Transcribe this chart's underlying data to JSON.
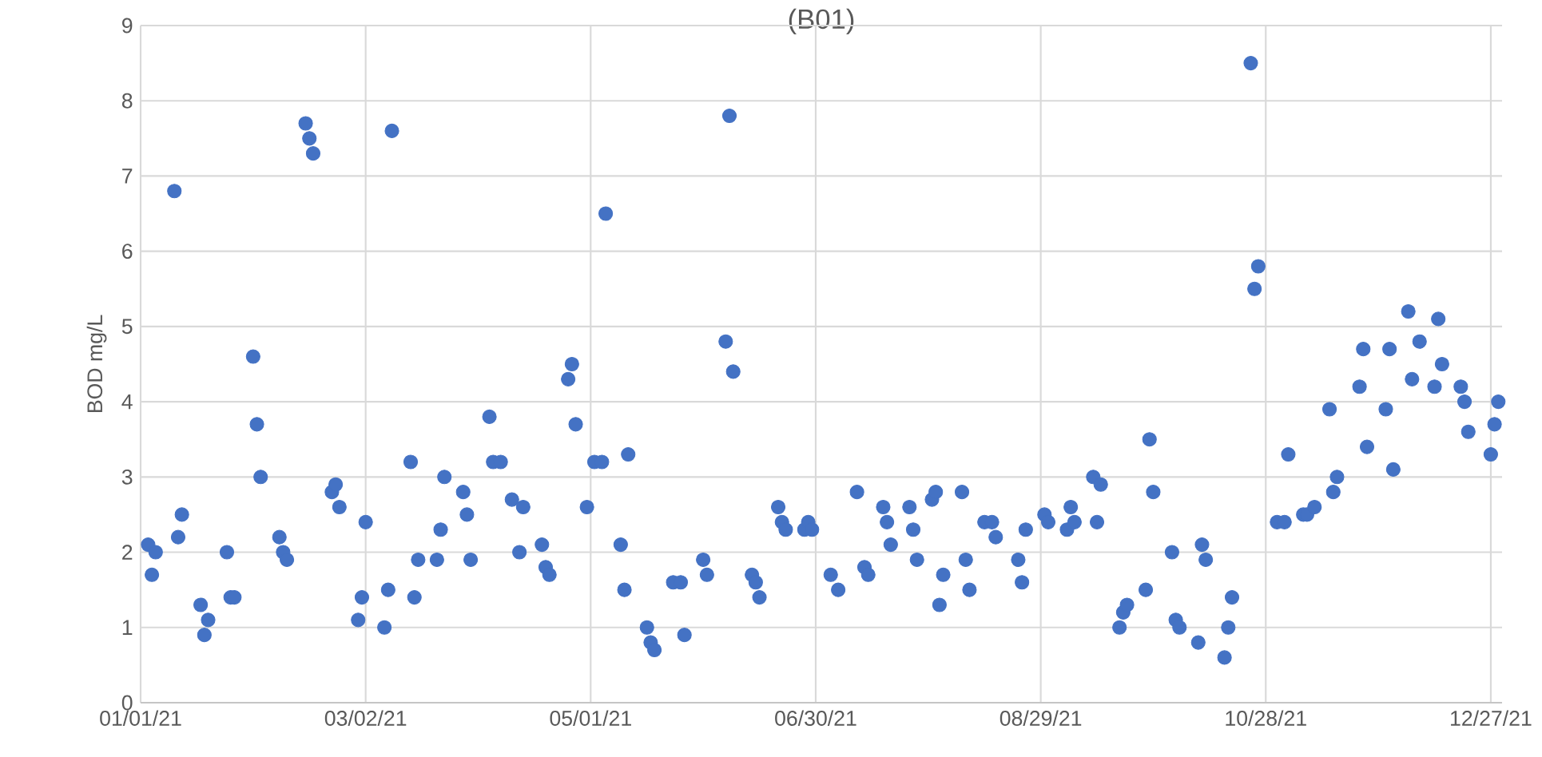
{
  "chart_data": {
    "type": "scatter",
    "title": "(B01)",
    "ylabel": "BOD mg/L",
    "marker": "circle",
    "grid": true,
    "xlim": [
      "2021-01-01",
      "2021-12-30"
    ],
    "ylim": [
      0,
      9
    ],
    "yticks": [
      0,
      1,
      2,
      3,
      4,
      5,
      6,
      7,
      8,
      9
    ],
    "xticks": [
      {
        "value": "2021-01-01",
        "label": "01/01/21"
      },
      {
        "value": "2021-03-02",
        "label": "03/02/21"
      },
      {
        "value": "2021-05-01",
        "label": "05/01/21"
      },
      {
        "value": "2021-06-30",
        "label": "06/30/21"
      },
      {
        "value": "2021-08-29",
        "label": "08/29/21"
      },
      {
        "value": "2021-10-28",
        "label": "10/28/21"
      },
      {
        "value": "2021-12-27",
        "label": "12/27/21"
      }
    ],
    "series": [
      {
        "color": "#4472c4",
        "x": [
          "2021-01-03",
          "2021-01-05",
          "2021-01-04",
          "2021-01-10",
          "2021-01-11",
          "2021-01-12",
          "2021-01-17",
          "2021-01-19",
          "2021-01-18",
          "2021-01-24",
          "2021-01-25",
          "2021-01-26",
          "2021-01-31",
          "2021-02-01",
          "2021-02-02",
          "2021-02-07",
          "2021-02-08",
          "2021-02-09",
          "2021-02-14",
          "2021-02-15",
          "2021-02-16",
          "2021-02-21",
          "2021-02-22",
          "2021-02-23",
          "2021-02-28",
          "2021-03-01",
          "2021-03-02",
          "2021-03-07",
          "2021-03-08",
          "2021-03-09",
          "2021-03-14",
          "2021-03-15",
          "2021-03-16",
          "2021-03-21",
          "2021-03-22",
          "2021-03-23",
          "2021-03-28",
          "2021-03-29",
          "2021-03-30",
          "2021-04-04",
          "2021-04-05",
          "2021-04-07",
          "2021-04-10",
          "2021-04-13",
          "2021-04-12",
          "2021-04-18",
          "2021-04-19",
          "2021-04-20",
          "2021-04-25",
          "2021-04-26",
          "2021-04-27",
          "2021-04-30",
          "2021-05-02",
          "2021-05-04",
          "2021-05-05",
          "2021-05-09",
          "2021-05-11",
          "2021-05-10",
          "2021-05-16",
          "2021-05-17",
          "2021-05-18",
          "2021-05-23",
          "2021-05-25",
          "2021-05-26",
          "2021-05-31",
          "2021-06-01",
          "2021-06-06",
          "2021-06-07",
          "2021-06-08",
          "2021-06-13",
          "2021-06-14",
          "2021-06-15",
          "2021-06-20",
          "2021-06-21",
          "2021-06-22",
          "2021-06-27",
          "2021-06-28",
          "2021-06-29",
          "2021-07-04",
          "2021-07-06",
          "2021-07-11",
          "2021-07-13",
          "2021-07-14",
          "2021-07-18",
          "2021-07-19",
          "2021-07-20",
          "2021-07-25",
          "2021-07-26",
          "2021-07-27",
          "2021-07-31",
          "2021-08-01",
          "2021-08-02",
          "2021-08-03",
          "2021-08-08",
          "2021-08-09",
          "2021-08-10",
          "2021-08-14",
          "2021-08-16",
          "2021-08-17",
          "2021-08-23",
          "2021-08-24",
          "2021-08-25",
          "2021-08-30",
          "2021-08-31",
          "2021-09-05",
          "2021-09-06",
          "2021-09-07",
          "2021-09-12",
          "2021-09-14",
          "2021-09-13",
          "2021-09-19",
          "2021-09-20",
          "2021-09-21",
          "2021-09-26",
          "2021-09-27",
          "2021-09-28",
          "2021-10-03",
          "2021-10-04",
          "2021-10-05",
          "2021-10-10",
          "2021-10-11",
          "2021-10-12",
          "2021-10-17",
          "2021-10-18",
          "2021-10-19",
          "2021-10-24",
          "2021-10-25",
          "2021-10-26",
          "2021-10-31",
          "2021-11-02",
          "2021-11-03",
          "2021-11-07",
          "2021-11-08",
          "2021-11-10",
          "2021-11-14",
          "2021-11-15",
          "2021-11-16",
          "2021-11-22",
          "2021-11-23",
          "2021-11-24",
          "2021-11-29",
          "2021-11-30",
          "2021-12-01",
          "2021-12-05",
          "2021-12-06",
          "2021-12-08",
          "2021-12-12",
          "2021-12-13",
          "2021-12-14",
          "2021-12-19",
          "2021-12-20",
          "2021-12-21",
          "2021-12-27",
          "2021-12-28",
          "2021-12-29"
        ],
        "values": [
          2.1,
          2.0,
          1.7,
          6.8,
          2.2,
          2.5,
          1.3,
          1.1,
          0.9,
          2.0,
          1.4,
          1.4,
          4.6,
          3.7,
          3.0,
          2.2,
          2.0,
          1.9,
          7.7,
          7.5,
          7.3,
          2.8,
          2.9,
          2.6,
          1.1,
          1.4,
          2.4,
          1.0,
          1.5,
          7.6,
          3.2,
          1.4,
          1.9,
          1.9,
          2.3,
          3.0,
          2.8,
          2.5,
          1.9,
          3.8,
          3.2,
          3.2,
          2.7,
          2.6,
          2.0,
          2.1,
          1.8,
          1.7,
          4.3,
          4.5,
          3.7,
          2.6,
          3.2,
          3.2,
          6.5,
          2.1,
          3.3,
          1.5,
          1.0,
          0.8,
          0.7,
          1.6,
          1.6,
          0.9,
          1.9,
          1.7,
          4.8,
          7.8,
          4.4,
          1.7,
          1.6,
          1.4,
          2.6,
          2.4,
          2.3,
          2.3,
          2.4,
          2.3,
          1.7,
          1.5,
          2.8,
          1.8,
          1.7,
          2.6,
          2.4,
          2.1,
          2.6,
          2.3,
          1.9,
          2.7,
          2.8,
          1.3,
          1.7,
          2.8,
          1.9,
          1.5,
          2.4,
          2.4,
          2.2,
          1.9,
          1.6,
          2.3,
          2.5,
          2.4,
          2.3,
          2.6,
          2.4,
          3.0,
          2.9,
          2.4,
          1.0,
          1.2,
          1.3,
          1.5,
          3.5,
          2.8,
          2.0,
          1.1,
          1.0,
          0.8,
          2.1,
          1.9,
          0.6,
          1.0,
          1.4,
          8.5,
          5.5,
          5.8,
          2.4,
          2.4,
          3.3,
          2.5,
          2.5,
          2.6,
          3.9,
          2.8,
          3.0,
          4.2,
          4.7,
          3.4,
          3.9,
          4.7,
          3.1,
          5.2,
          4.3,
          4.8,
          4.2,
          5.1,
          4.5,
          4.2,
          4.0,
          3.6,
          3.3,
          3.7,
          4.0
        ]
      }
    ]
  }
}
